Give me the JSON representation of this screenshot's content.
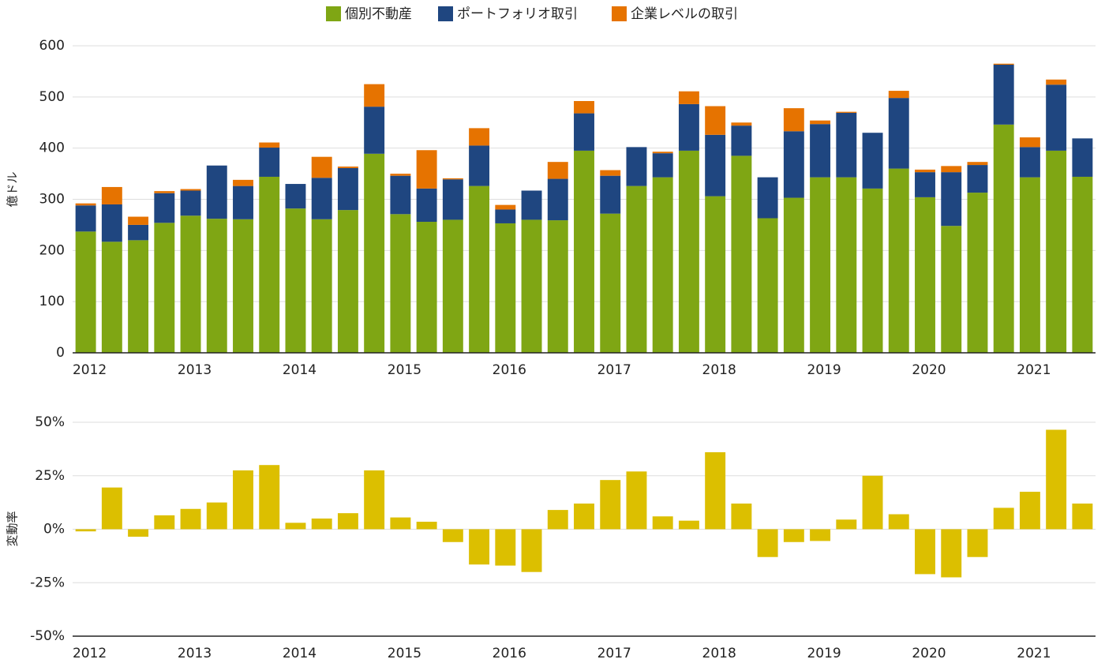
{
  "chart_data": [
    {
      "type": "bar",
      "stacked": true,
      "y_label": "億ドル",
      "categories": [
        "2012",
        null,
        null,
        null,
        "2013",
        null,
        null,
        null,
        "2014",
        null,
        null,
        null,
        "2015",
        null,
        null,
        null,
        "2016",
        null,
        null,
        null,
        "2017",
        null,
        null,
        null,
        "2018",
        null,
        null,
        null,
        "2019",
        null,
        null,
        null,
        "2020",
        null,
        null,
        null,
        "2021",
        null,
        null
      ],
      "series": [
        {
          "name": "個別不動産",
          "color": "#7fa614",
          "values": [
            237,
            217,
            220,
            254,
            268,
            262,
            261,
            344,
            282,
            261,
            279,
            389,
            271,
            256,
            260,
            326,
            253,
            260,
            259,
            395,
            272,
            326,
            343,
            395,
            306,
            385,
            263,
            303,
            343,
            343,
            321,
            360,
            304,
            248,
            313,
            446,
            343,
            395,
            344
          ]
        },
        {
          "name": "ポートフォリオ取引",
          "color": "#1f4680",
          "values": [
            51,
            73,
            30,
            58,
            49,
            104,
            65,
            57,
            48,
            81,
            82,
            92,
            75,
            65,
            79,
            79,
            27,
            57,
            81,
            73,
            74,
            76,
            47,
            91,
            120,
            59,
            80,
            130,
            104,
            126,
            109,
            138,
            49,
            105,
            54,
            117,
            59,
            129,
            75
          ]
        },
        {
          "name": "企業レベルの取引",
          "color": "#e67300",
          "values": [
            4,
            34,
            16,
            4,
            3,
            0,
            12,
            10,
            0,
            41,
            3,
            44,
            4,
            75,
            2,
            34,
            9,
            0,
            33,
            24,
            11,
            0,
            3,
            25,
            56,
            6,
            0,
            45,
            7,
            2,
            0,
            14,
            5,
            12,
            6,
            2,
            19,
            10,
            0
          ]
        }
      ],
      "ylim": [
        0,
        600
      ],
      "yticks": [
        0,
        100,
        200,
        300,
        400,
        500,
        600
      ],
      "grid": true,
      "legend": "top"
    },
    {
      "type": "bar",
      "y_label": "変動率",
      "color": "#dcbf00",
      "categories": [
        "2012",
        null,
        null,
        null,
        "2013",
        null,
        null,
        null,
        "2014",
        null,
        null,
        null,
        "2015",
        null,
        null,
        null,
        "2016",
        null,
        null,
        null,
        "2017",
        null,
        null,
        null,
        "2018",
        null,
        null,
        null,
        "2019",
        null,
        null,
        null,
        "2020",
        null,
        null,
        null,
        "2021",
        null,
        null
      ],
      "values": [
        -1,
        19.5,
        -3.5,
        6.5,
        9.5,
        12.5,
        27.5,
        30,
        3,
        5,
        7.5,
        27.5,
        5.5,
        3.5,
        -6,
        -16.5,
        -17,
        -20,
        9,
        12,
        23,
        27,
        6,
        4,
        36,
        12,
        -13,
        -6,
        -5.5,
        4.5,
        25,
        7,
        -21,
        -22.5,
        -13,
        10,
        17.5,
        46.5,
        12
      ],
      "ylim": [
        -50,
        50
      ],
      "yticks": [
        {
          "value": -50,
          "label": "-50%"
        },
        {
          "value": -25,
          "label": "-25%"
        },
        {
          "value": 0,
          "label": "0%"
        },
        {
          "value": 25,
          "label": "25%"
        },
        {
          "value": 50,
          "label": "50%"
        }
      ],
      "grid": true
    }
  ]
}
